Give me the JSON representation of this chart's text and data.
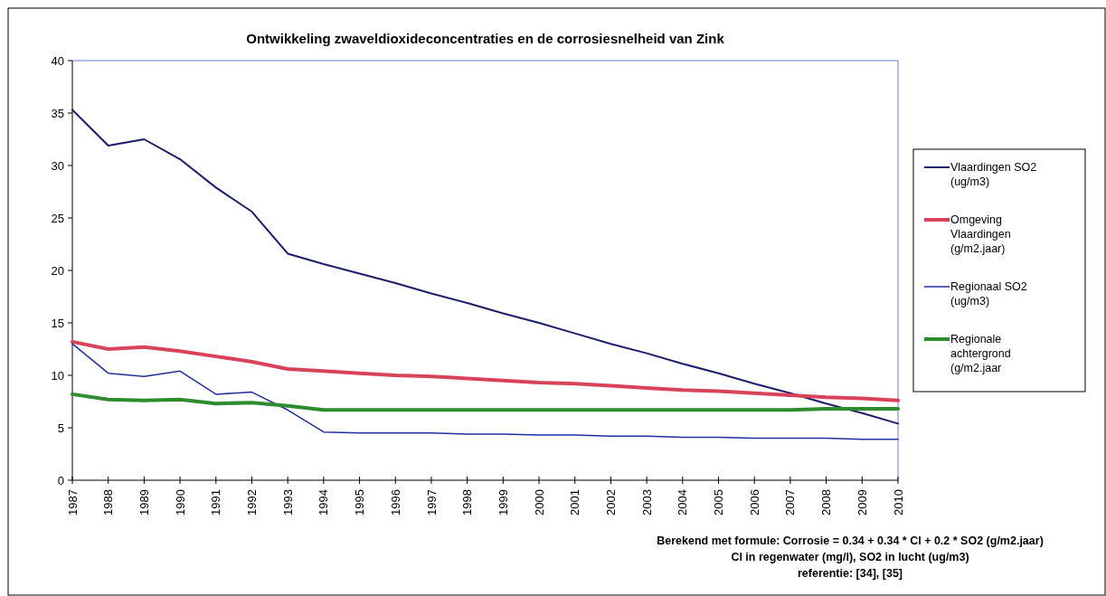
{
  "chart_data": {
    "type": "line",
    "title": "Ontwikkeling zwaveldioxideconcentraties en de corrosiesnelheid van Zink",
    "categories": [
      "1987",
      "1988",
      "1989",
      "1990",
      "1991",
      "1992",
      "1993",
      "1994",
      "1995",
      "1996",
      "1997",
      "1998",
      "1999",
      "2000",
      "2001",
      "2002",
      "2003",
      "2004",
      "2005",
      "2006",
      "2007",
      "2008",
      "2009",
      "2010"
    ],
    "series": [
      {
        "name": "Vlaardingen SO2 (ug/m3)",
        "color": "#1c1c6e",
        "values": [
          35.3,
          31.9,
          32.5,
          30.6,
          27.9,
          25.6,
          21.6,
          20.6,
          19.7,
          18.8,
          17.8,
          16.9,
          15.9,
          15.0,
          14.0,
          13.0,
          12.1,
          11.1,
          10.2,
          9.2,
          8.3,
          7.3,
          6.4,
          5.4
        ]
      },
      {
        "name": "Omgeving Vlaardingen (g/m2.jaar)",
        "color": "#d9435a",
        "values": [
          13.2,
          12.5,
          12.7,
          12.3,
          11.8,
          11.3,
          10.6,
          10.4,
          10.2,
          10.0,
          9.9,
          9.7,
          9.5,
          9.3,
          9.2,
          9.0,
          8.8,
          8.6,
          8.5,
          8.3,
          8.1,
          7.9,
          7.8,
          7.6
        ]
      },
      {
        "name": "Regionaal SO2 (ug/m3)",
        "color": "#2030a0",
        "values": [
          13.0,
          10.2,
          9.9,
          10.4,
          8.2,
          8.4,
          6.7,
          4.6,
          4.5,
          4.5,
          4.5,
          4.4,
          4.4,
          4.3,
          4.3,
          4.2,
          4.2,
          4.1,
          4.1,
          4.0,
          4.0,
          4.0,
          3.9,
          3.9
        ]
      },
      {
        "name": "Regionale achtergrond (g/m2.jaar",
        "color": "#2e8b2e",
        "values": [
          8.2,
          7.7,
          7.6,
          7.7,
          7.3,
          7.4,
          7.1,
          6.7,
          6.7,
          6.7,
          6.7,
          6.7,
          6.7,
          6.7,
          6.7,
          6.7,
          6.7,
          6.7,
          6.7,
          6.7,
          6.7,
          6.8,
          6.8,
          6.8
        ]
      }
    ],
    "ylim": [
      0,
      40
    ],
    "yticks": [
      0,
      5,
      10,
      15,
      20,
      25,
      30,
      35,
      40
    ],
    "legend": "right",
    "annotations": [
      "Berekend met formule: Corrosie = 0.34 + 0.34 * Cl + 0.2 * SO2 (g/m2.jaar)",
      "Cl in regenwater (mg/l), SO2 in lucht (ug/m3)",
      "referentie: [34], [35]"
    ]
  }
}
